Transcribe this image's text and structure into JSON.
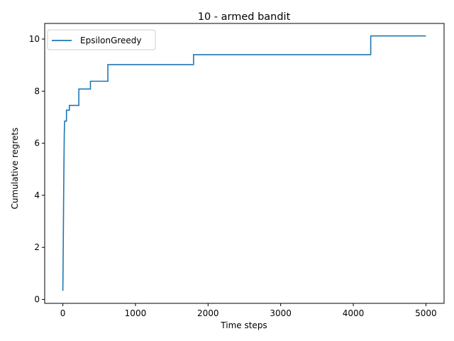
{
  "chart_data": {
    "type": "line",
    "title": "10 - armed bandit",
    "xlabel": "Time steps",
    "ylabel": "Cumulative regrets",
    "xlim": [
      -250,
      5250
    ],
    "ylim": [
      -0.15,
      10.6
    ],
    "xticks": [
      0,
      1000,
      2000,
      3000,
      4000,
      5000
    ],
    "yticks": [
      0,
      2,
      4,
      6,
      8,
      10
    ],
    "grid": false,
    "legend": "top-left",
    "colors": {
      "series": "#1f77b4"
    },
    "series": [
      {
        "name": "EpsilonGreedy",
        "x": [
          0,
          5,
          10,
          15,
          20,
          25,
          30,
          40,
          50,
          50,
          90,
          90,
          220,
          220,
          380,
          380,
          620,
          620,
          1800,
          1800,
          4240,
          4240,
          5000
        ],
        "y": [
          0.33,
          1.8,
          3.6,
          5.2,
          6.4,
          6.85,
          6.85,
          6.85,
          6.85,
          7.27,
          7.27,
          7.45,
          7.45,
          8.08,
          8.08,
          8.38,
          8.38,
          9.02,
          9.02,
          9.4,
          9.4,
          10.12,
          10.12
        ]
      }
    ]
  }
}
